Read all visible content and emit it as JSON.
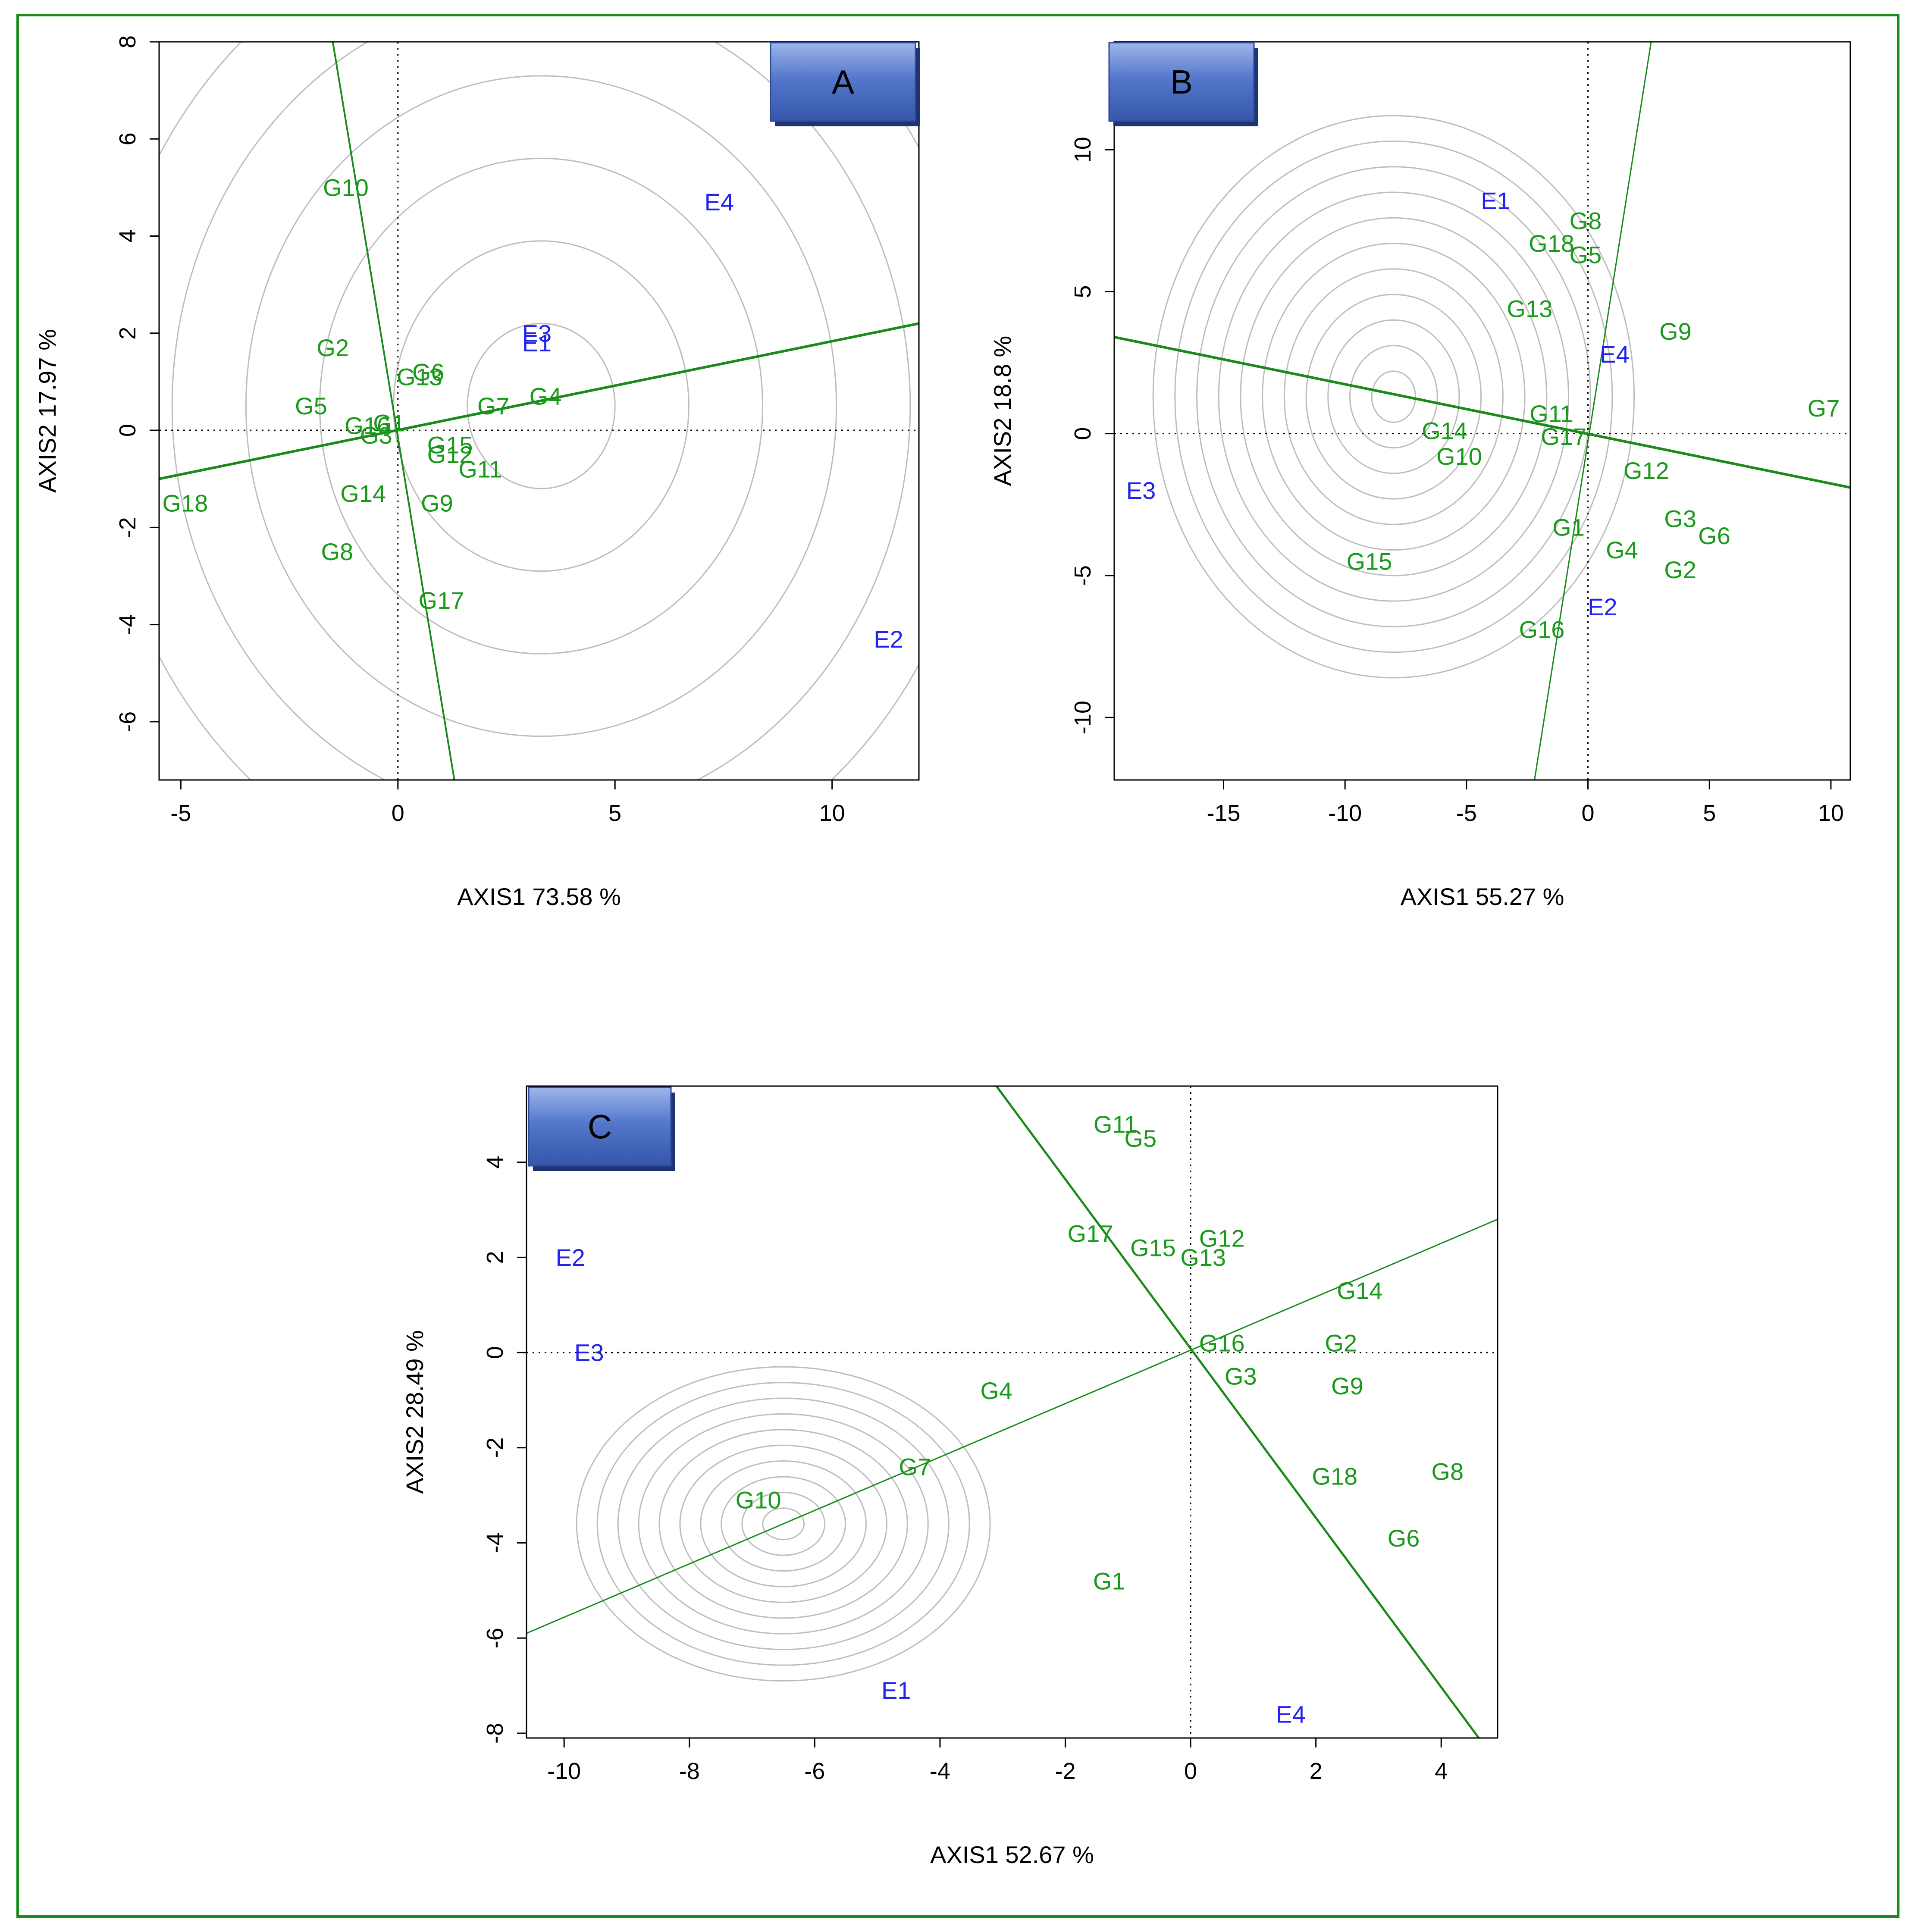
{
  "colors": {
    "genotype": "#1a9a1a",
    "environment": "#2222ee",
    "line": "#1a8a1a",
    "frame": "#1a8a1a",
    "circle": "#bdbdbd",
    "badge": "#4d73c8"
  },
  "chart_data": [
    {
      "type": "scatter",
      "badge": "A",
      "xlabel": "AXIS1 73.58 %",
      "ylabel": "AXIS2 17.97 %",
      "xlim": [
        -5.5,
        12
      ],
      "ylim": [
        -7.2,
        8
      ],
      "xticks": [
        -5,
        0,
        5,
        10
      ],
      "yticks": [
        -6,
        -4,
        -2,
        0,
        2,
        4,
        6,
        8
      ],
      "xtick_labels": [
        "-5",
        "0",
        "5",
        "10"
      ],
      "ytick_labels": [
        "-6",
        "-4",
        "-2",
        "0",
        "2",
        "4",
        "6",
        "8"
      ],
      "circles": {
        "center": [
          3.3,
          0.5
        ],
        "step": 1.7,
        "count": 14
      },
      "lines": [
        {
          "p1": [
            -5.5,
            -1.0
          ],
          "p2": [
            12,
            2.2
          ],
          "width": 6
        },
        {
          "p1": [
            -1.5,
            8.0
          ],
          "p2": [
            1.3,
            -7.2
          ],
          "width": 4
        }
      ],
      "points": [
        {
          "label": "G10",
          "x": -1.2,
          "y": 5.0,
          "kind": "G"
        },
        {
          "label": "E4",
          "x": 7.4,
          "y": 4.7,
          "kind": "E"
        },
        {
          "label": "E3",
          "x": 3.2,
          "y": 2.0,
          "kind": "E"
        },
        {
          "label": "E1",
          "x": 3.2,
          "y": 1.8,
          "kind": "E"
        },
        {
          "label": "G2",
          "x": -1.5,
          "y": 1.7,
          "kind": "G"
        },
        {
          "label": "G6",
          "x": 0.7,
          "y": 1.2,
          "kind": "G"
        },
        {
          "label": "G13",
          "x": 0.5,
          "y": 1.1,
          "kind": "G"
        },
        {
          "label": "G4",
          "x": 3.4,
          "y": 0.7,
          "kind": "G"
        },
        {
          "label": "G5",
          "x": -2.0,
          "y": 0.5,
          "kind": "G"
        },
        {
          "label": "G7",
          "x": 2.2,
          "y": 0.5,
          "kind": "G"
        },
        {
          "label": "G16",
          "x": -0.7,
          "y": 0.1,
          "kind": "G"
        },
        {
          "label": "G1",
          "x": -0.2,
          "y": 0.15,
          "kind": "G"
        },
        {
          "label": "G3",
          "x": -0.5,
          "y": -0.1,
          "kind": "G"
        },
        {
          "label": "G15",
          "x": 1.2,
          "y": -0.3,
          "kind": "G"
        },
        {
          "label": "G12",
          "x": 1.2,
          "y": -0.5,
          "kind": "G"
        },
        {
          "label": "G11",
          "x": 1.9,
          "y": -0.8,
          "kind": "G"
        },
        {
          "label": "G18",
          "x": -4.9,
          "y": -1.5,
          "kind": "G"
        },
        {
          "label": "G14",
          "x": -0.8,
          "y": -1.3,
          "kind": "G"
        },
        {
          "label": "G9",
          "x": 0.9,
          "y": -1.5,
          "kind": "G"
        },
        {
          "label": "G8",
          "x": -1.4,
          "y": -2.5,
          "kind": "G"
        },
        {
          "label": "G17",
          "x": 1.0,
          "y": -3.5,
          "kind": "G"
        },
        {
          "label": "E2",
          "x": 11.3,
          "y": -4.3,
          "kind": "E"
        }
      ]
    },
    {
      "type": "scatter",
      "badge": "B",
      "xlabel": "AXIS1 55.27 %",
      "ylabel": "AXIS2 18.8 %",
      "xlim": [
        -19.5,
        10.8
      ],
      "ylim": [
        -12.2,
        13.8
      ],
      "xticks": [
        -15,
        -10,
        -5,
        0,
        5,
        10
      ],
      "yticks": [
        -10,
        -5,
        0,
        5,
        10
      ],
      "xtick_labels": [
        "-15",
        "-10",
        "-5",
        "0",
        "5",
        "10"
      ],
      "ytick_labels": [
        "-10",
        "-5",
        "0",
        "5",
        "10"
      ],
      "circles": {
        "center": [
          -8.0,
          1.3
        ],
        "step": 0.9,
        "count": 11
      },
      "lines": [
        {
          "p1": [
            -19.5,
            3.4
          ],
          "p2": [
            10.8,
            -1.9
          ],
          "width": 6
        },
        {
          "p1": [
            -2.2,
            -12.2
          ],
          "p2": [
            2.6,
            13.8
          ],
          "width": 3
        }
      ],
      "points": [
        {
          "label": "E1",
          "x": -3.8,
          "y": 8.2,
          "kind": "E"
        },
        {
          "label": "G8",
          "x": -0.1,
          "y": 7.5,
          "kind": "G"
        },
        {
          "label": "G18",
          "x": -1.5,
          "y": 6.7,
          "kind": "G"
        },
        {
          "label": "G5",
          "x": -0.1,
          "y": 6.3,
          "kind": "G"
        },
        {
          "label": "G13",
          "x": -2.4,
          "y": 4.4,
          "kind": "G"
        },
        {
          "label": "G9",
          "x": 3.6,
          "y": 3.6,
          "kind": "G"
        },
        {
          "label": "E4",
          "x": 1.1,
          "y": 2.8,
          "kind": "E"
        },
        {
          "label": "G7",
          "x": 9.7,
          "y": 0.9,
          "kind": "G"
        },
        {
          "label": "G11",
          "x": -1.5,
          "y": 0.7,
          "kind": "G"
        },
        {
          "label": "G14",
          "x": -5.9,
          "y": 0.1,
          "kind": "G"
        },
        {
          "label": "G17",
          "x": -1.0,
          "y": -0.1,
          "kind": "G"
        },
        {
          "label": "G10",
          "x": -5.3,
          "y": -0.8,
          "kind": "G"
        },
        {
          "label": "G12",
          "x": 2.4,
          "y": -1.3,
          "kind": "G"
        },
        {
          "label": "E3",
          "x": -18.4,
          "y": -2.0,
          "kind": "E"
        },
        {
          "label": "G3",
          "x": 3.8,
          "y": -3.0,
          "kind": "G"
        },
        {
          "label": "G1",
          "x": -0.8,
          "y": -3.3,
          "kind": "G"
        },
        {
          "label": "G6",
          "x": 5.2,
          "y": -3.6,
          "kind": "G"
        },
        {
          "label": "G4",
          "x": 1.4,
          "y": -4.1,
          "kind": "G"
        },
        {
          "label": "G15",
          "x": -9.0,
          "y": -4.5,
          "kind": "G"
        },
        {
          "label": "G2",
          "x": 3.8,
          "y": -4.8,
          "kind": "G"
        },
        {
          "label": "E2",
          "x": 0.6,
          "y": -6.1,
          "kind": "E"
        },
        {
          "label": "G16",
          "x": -1.9,
          "y": -6.9,
          "kind": "G"
        }
      ]
    },
    {
      "type": "scatter",
      "badge": "C",
      "xlabel": "AXIS1 52.67 %",
      "ylabel": "AXIS2 28.49 %",
      "xlim": [
        -10.6,
        4.9
      ],
      "ylim": [
        -8.1,
        5.6
      ],
      "xticks": [
        -10,
        -8,
        -6,
        -4,
        -2,
        0,
        2,
        4
      ],
      "yticks": [
        -8,
        -6,
        -4,
        -2,
        0,
        2,
        4
      ],
      "xtick_labels": [
        "-10",
        "-8",
        "-6",
        "-4",
        "-2",
        "0",
        "2",
        "4"
      ],
      "ytick_labels": [
        "-8",
        "-6",
        "-4",
        "-2",
        "0",
        "2",
        "4"
      ],
      "circles": {
        "center": [
          -6.5,
          -3.6
        ],
        "step": 0.33,
        "count": 10
      },
      "lines": [
        {
          "p1": [
            -10.6,
            -5.9
          ],
          "p2": [
            4.9,
            2.8
          ],
          "width": 3
        },
        {
          "p1": [
            -3.1,
            5.6
          ],
          "p2": [
            4.6,
            -8.1
          ],
          "width": 5
        }
      ],
      "points": [
        {
          "label": "G11",
          "x": -1.2,
          "y": 4.8,
          "kind": "G"
        },
        {
          "label": "G5",
          "x": -0.8,
          "y": 4.5,
          "kind": "G"
        },
        {
          "label": "G17",
          "x": -1.6,
          "y": 2.5,
          "kind": "G"
        },
        {
          "label": "G12",
          "x": 0.5,
          "y": 2.4,
          "kind": "G"
        },
        {
          "label": "G15",
          "x": -0.6,
          "y": 2.2,
          "kind": "G"
        },
        {
          "label": "E2",
          "x": -9.9,
          "y": 2.0,
          "kind": "E"
        },
        {
          "label": "G13",
          "x": 0.2,
          "y": 2.0,
          "kind": "G"
        },
        {
          "label": "G14",
          "x": 2.7,
          "y": 1.3,
          "kind": "G"
        },
        {
          "label": "G16",
          "x": 0.5,
          "y": 0.2,
          "kind": "G"
        },
        {
          "label": "G2",
          "x": 2.4,
          "y": 0.2,
          "kind": "G"
        },
        {
          "label": "E3",
          "x": -9.6,
          "y": 0.0,
          "kind": "E"
        },
        {
          "label": "G3",
          "x": 0.8,
          "y": -0.5,
          "kind": "G"
        },
        {
          "label": "G4",
          "x": -3.1,
          "y": -0.8,
          "kind": "G"
        },
        {
          "label": "G9",
          "x": 2.5,
          "y": -0.7,
          "kind": "G"
        },
        {
          "label": "G7",
          "x": -4.4,
          "y": -2.4,
          "kind": "G"
        },
        {
          "label": "G8",
          "x": 4.1,
          "y": -2.5,
          "kind": "G"
        },
        {
          "label": "G18",
          "x": 2.3,
          "y": -2.6,
          "kind": "G"
        },
        {
          "label": "G10",
          "x": -6.9,
          "y": -3.1,
          "kind": "G"
        },
        {
          "label": "G6",
          "x": 3.4,
          "y": -3.9,
          "kind": "G"
        },
        {
          "label": "G1",
          "x": -1.3,
          "y": -4.8,
          "kind": "G"
        },
        {
          "label": "E1",
          "x": -4.7,
          "y": -7.1,
          "kind": "E"
        },
        {
          "label": "E4",
          "x": 1.6,
          "y": -7.6,
          "kind": "E"
        }
      ]
    }
  ]
}
